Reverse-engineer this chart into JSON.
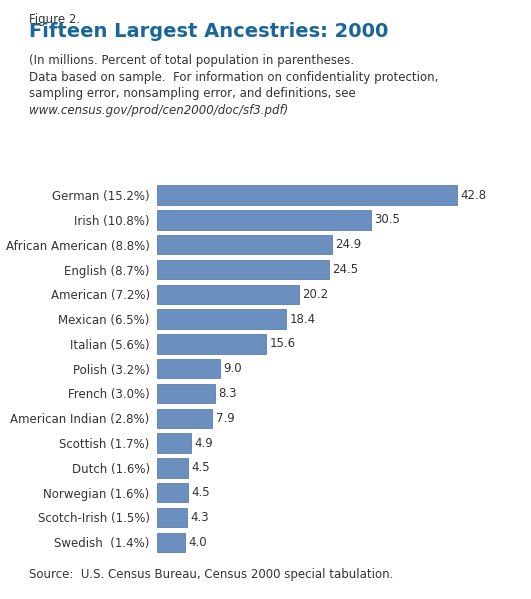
{
  "figure_label": "Figure 2.",
  "title": "Fifteen Largest Ancestries: 2000",
  "subtitle_line1": "(In millions. Percent of total population in parentheses.",
  "subtitle_line2": "Data based on sample.  For information on confidentiality protection,",
  "subtitle_line3": "sampling error, nonsampling error, and definitions, see",
  "subtitle_line4": "www.census.gov/prod/cen2000/doc/sf3.pdf)",
  "source": "Source:  U.S. Census Bureau, Census 2000 special tabulation.",
  "categories": [
    "German (15.2%)",
    "Irish (10.8%)",
    "African American (8.8%)",
    "English (8.7%)",
    "American (7.2%)",
    "Mexican (6.5%)",
    "Italian (5.6%)",
    "Polish (3.2%)",
    "French (3.0%)",
    "American Indian (2.8%)",
    "Scottish (1.7%)",
    "Dutch (1.6%)",
    "Norwegian (1.6%)",
    "Scotch-Irish (1.5%)",
    "Swedish  (1.4%)"
  ],
  "values": [
    42.8,
    30.5,
    24.9,
    24.5,
    20.2,
    18.4,
    15.6,
    9.0,
    8.3,
    7.9,
    4.9,
    4.5,
    4.5,
    4.3,
    4.0
  ],
  "bar_color": "#6b8fbe",
  "bar_edge_color": "#4a6f9e",
  "title_color": "#1a6699",
  "text_color": "#333333",
  "background_color": "#ffffff",
  "xlim": [
    0,
    48
  ],
  "bar_height": 0.78,
  "title_fontsize": 14,
  "label_fontsize": 8.5,
  "value_fontsize": 8.5,
  "subtitle_fontsize": 8.5,
  "source_fontsize": 8.5,
  "fig_label_fontsize": 8.5
}
